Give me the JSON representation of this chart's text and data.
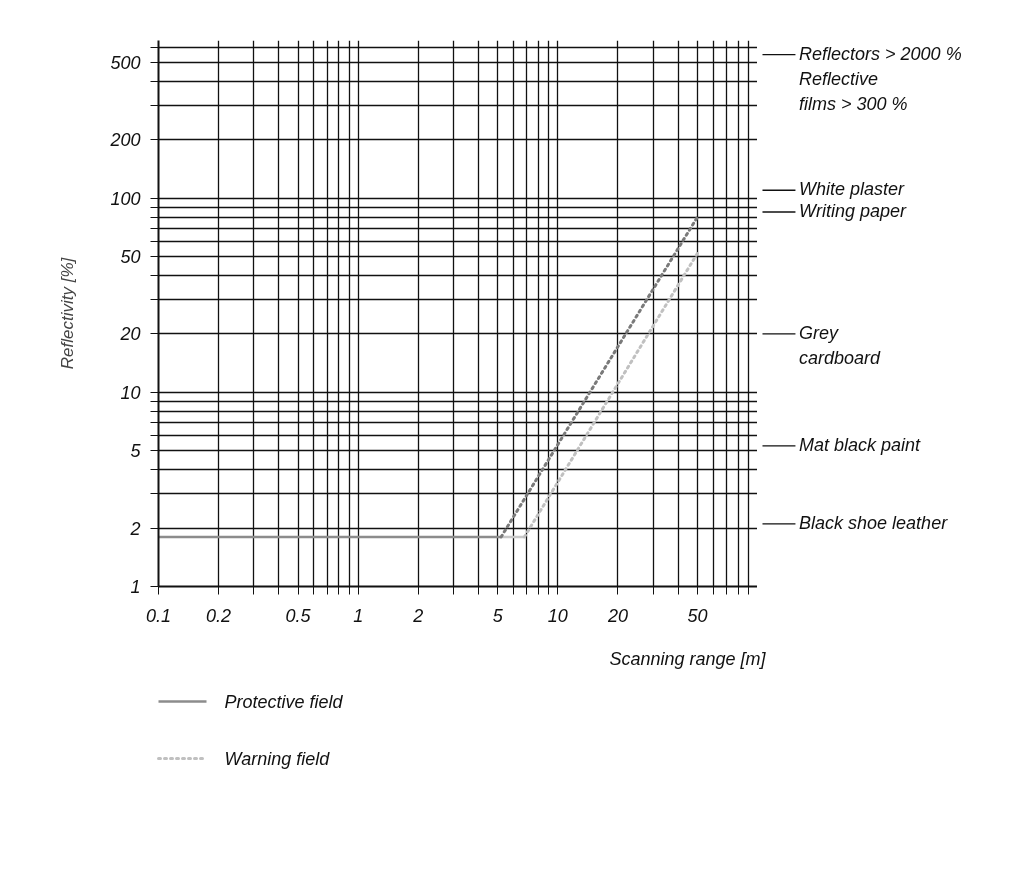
{
  "chart_data": {
    "type": "line",
    "xlabel": "Scanning range [m]",
    "ylabel": "Reflectivity [%]",
    "log": "xy",
    "xlim": [
      0.1,
      100
    ],
    "ylim": [
      1,
      650
    ],
    "xticks": [
      0.1,
      0.2,
      {
        "value": 0.3,
        "label": null
      },
      {
        "value": 0.4,
        "label": null
      },
      0.5,
      {
        "value": 0.6,
        "label": null
      },
      {
        "value": 0.7,
        "label": null
      },
      {
        "value": 0.8,
        "label": null
      },
      {
        "value": 0.9,
        "label": null
      },
      1,
      2,
      {
        "value": 3,
        "label": null
      },
      {
        "value": 4,
        "label": null
      },
      5,
      {
        "value": 6,
        "label": null
      },
      {
        "value": 7,
        "label": null
      },
      {
        "value": 8,
        "label": null
      },
      {
        "value": 9,
        "label": null
      },
      10,
      20,
      {
        "value": 30,
        "label": null
      },
      {
        "value": 40,
        "label": null
      },
      50,
      {
        "value": 60,
        "label": null
      },
      {
        "value": 70,
        "label": null
      },
      {
        "value": 80,
        "label": null
      },
      {
        "value": 90,
        "label": null
      }
    ],
    "yticks": [
      1,
      2,
      {
        "value": 3,
        "label": null
      },
      {
        "value": 4,
        "label": null
      },
      5,
      {
        "value": 6,
        "label": null
      },
      {
        "value": 7,
        "label": null
      },
      {
        "value": 8,
        "label": null
      },
      {
        "value": 9,
        "label": null
      },
      10,
      20,
      {
        "value": 30,
        "label": null
      },
      {
        "value": 40,
        "label": null
      },
      50,
      {
        "value": 60,
        "label": null
      },
      {
        "value": 70,
        "label": null
      },
      {
        "value": 80,
        "label": null
      },
      {
        "value": 90,
        "label": null
      },
      100,
      200,
      {
        "value": 300,
        "label": null
      },
      {
        "value": 400,
        "label": null
      },
      500,
      {
        "value": 600,
        "label": null
      }
    ],
    "grid": true,
    "legend": "bottom left",
    "series": [
      {
        "color": "#c8c8c8",
        "line_style": "solid",
        "x": [
          5.2,
          6.8
        ],
        "values": [
          1.8,
          1.8
        ]
      },
      {
        "name": "Protective field",
        "color": "#8c8c8c",
        "line_style": "solid",
        "x": [
          0.1,
          5.2
        ],
        "values": [
          1.8,
          1.8
        ]
      },
      {
        "color": "#7a7a7a",
        "line_style": "dotted",
        "x": [
          5.2,
          50
        ],
        "values": [
          1.8,
          80
        ]
      },
      {
        "name": "Warning field",
        "color": "#c0c0c0",
        "line_style": "dotted",
        "x": [
          6.8,
          50
        ],
        "values": [
          1.8,
          52
        ]
      }
    ],
    "ref_lines": [
      {
        "axis": "y",
        "value": 550,
        "label": "Reflectors > 2000 %\nReflective\nfilms > 300 %",
        "color": "#111111"
      },
      {
        "axis": "y",
        "value": 110,
        "label": "White plaster",
        "color": "#111111"
      },
      {
        "axis": "y",
        "value": 85,
        "label": "Writing paper",
        "color": "#111111"
      },
      {
        "axis": "y",
        "value": 20,
        "label": "Grey\ncardboard",
        "color": "#111111"
      },
      {
        "axis": "y",
        "value": 5.3,
        "label": "Mat black paint",
        "color": "#111111"
      },
      {
        "axis": "y",
        "value": 2.1,
        "label": "Black shoe leather",
        "color": "#111111"
      }
    ]
  }
}
